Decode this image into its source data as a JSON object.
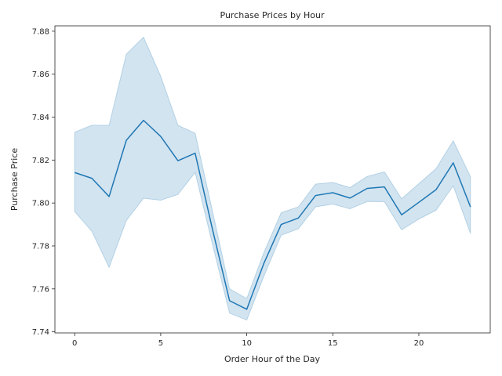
{
  "chart_data": {
    "type": "line",
    "title": "Purchase Prices by Hour",
    "xlabel": "Order Hour of the Day",
    "ylabel": "Purchase Price",
    "xlim": [
      -1.15,
      24.15
    ],
    "ylim": [
      7.7395,
      7.8825
    ],
    "xticks": [
      0,
      5,
      10,
      15,
      20
    ],
    "yticks": [
      7.74,
      7.76,
      7.78,
      7.8,
      7.82,
      7.84,
      7.86,
      7.88
    ],
    "grid": false,
    "colors": {
      "line": "#1f77b4",
      "band": "#1f77b4",
      "axis": "#262626"
    },
    "series": [
      {
        "x": [
          0,
          1,
          2,
          3,
          4,
          5,
          6,
          7,
          8,
          9,
          10,
          11,
          12,
          13,
          14,
          15,
          16,
          17,
          18,
          19,
          20,
          21,
          22,
          23
        ],
        "values": [
          7.8142,
          7.8115,
          7.803,
          7.8292,
          7.8385,
          7.831,
          7.8197,
          7.8232,
          7.788,
          7.7545,
          7.7505,
          7.772,
          7.79,
          7.793,
          7.8035,
          7.8048,
          7.8023,
          7.8068,
          7.8075,
          7.7945,
          7.8003,
          7.8062,
          7.8187,
          7.7982
        ],
        "ci_low": [
          7.796,
          7.7868,
          7.77,
          7.7918,
          7.8022,
          7.8013,
          7.804,
          7.8142,
          7.781,
          7.7487,
          7.7455,
          7.766,
          7.785,
          7.788,
          7.7982,
          7.7995,
          7.7973,
          7.8007,
          7.8006,
          7.7875,
          7.7925,
          7.7966,
          7.808,
          7.7858
        ],
        "ci_high": [
          7.833,
          7.8362,
          7.8362,
          7.8693,
          7.8772,
          7.859,
          7.8362,
          7.8325,
          7.7965,
          7.76,
          7.7555,
          7.777,
          7.7955,
          7.7982,
          7.8088,
          7.8096,
          7.8072,
          7.8124,
          7.8145,
          7.802,
          7.809,
          7.816,
          7.829,
          7.8123
        ]
      }
    ]
  }
}
